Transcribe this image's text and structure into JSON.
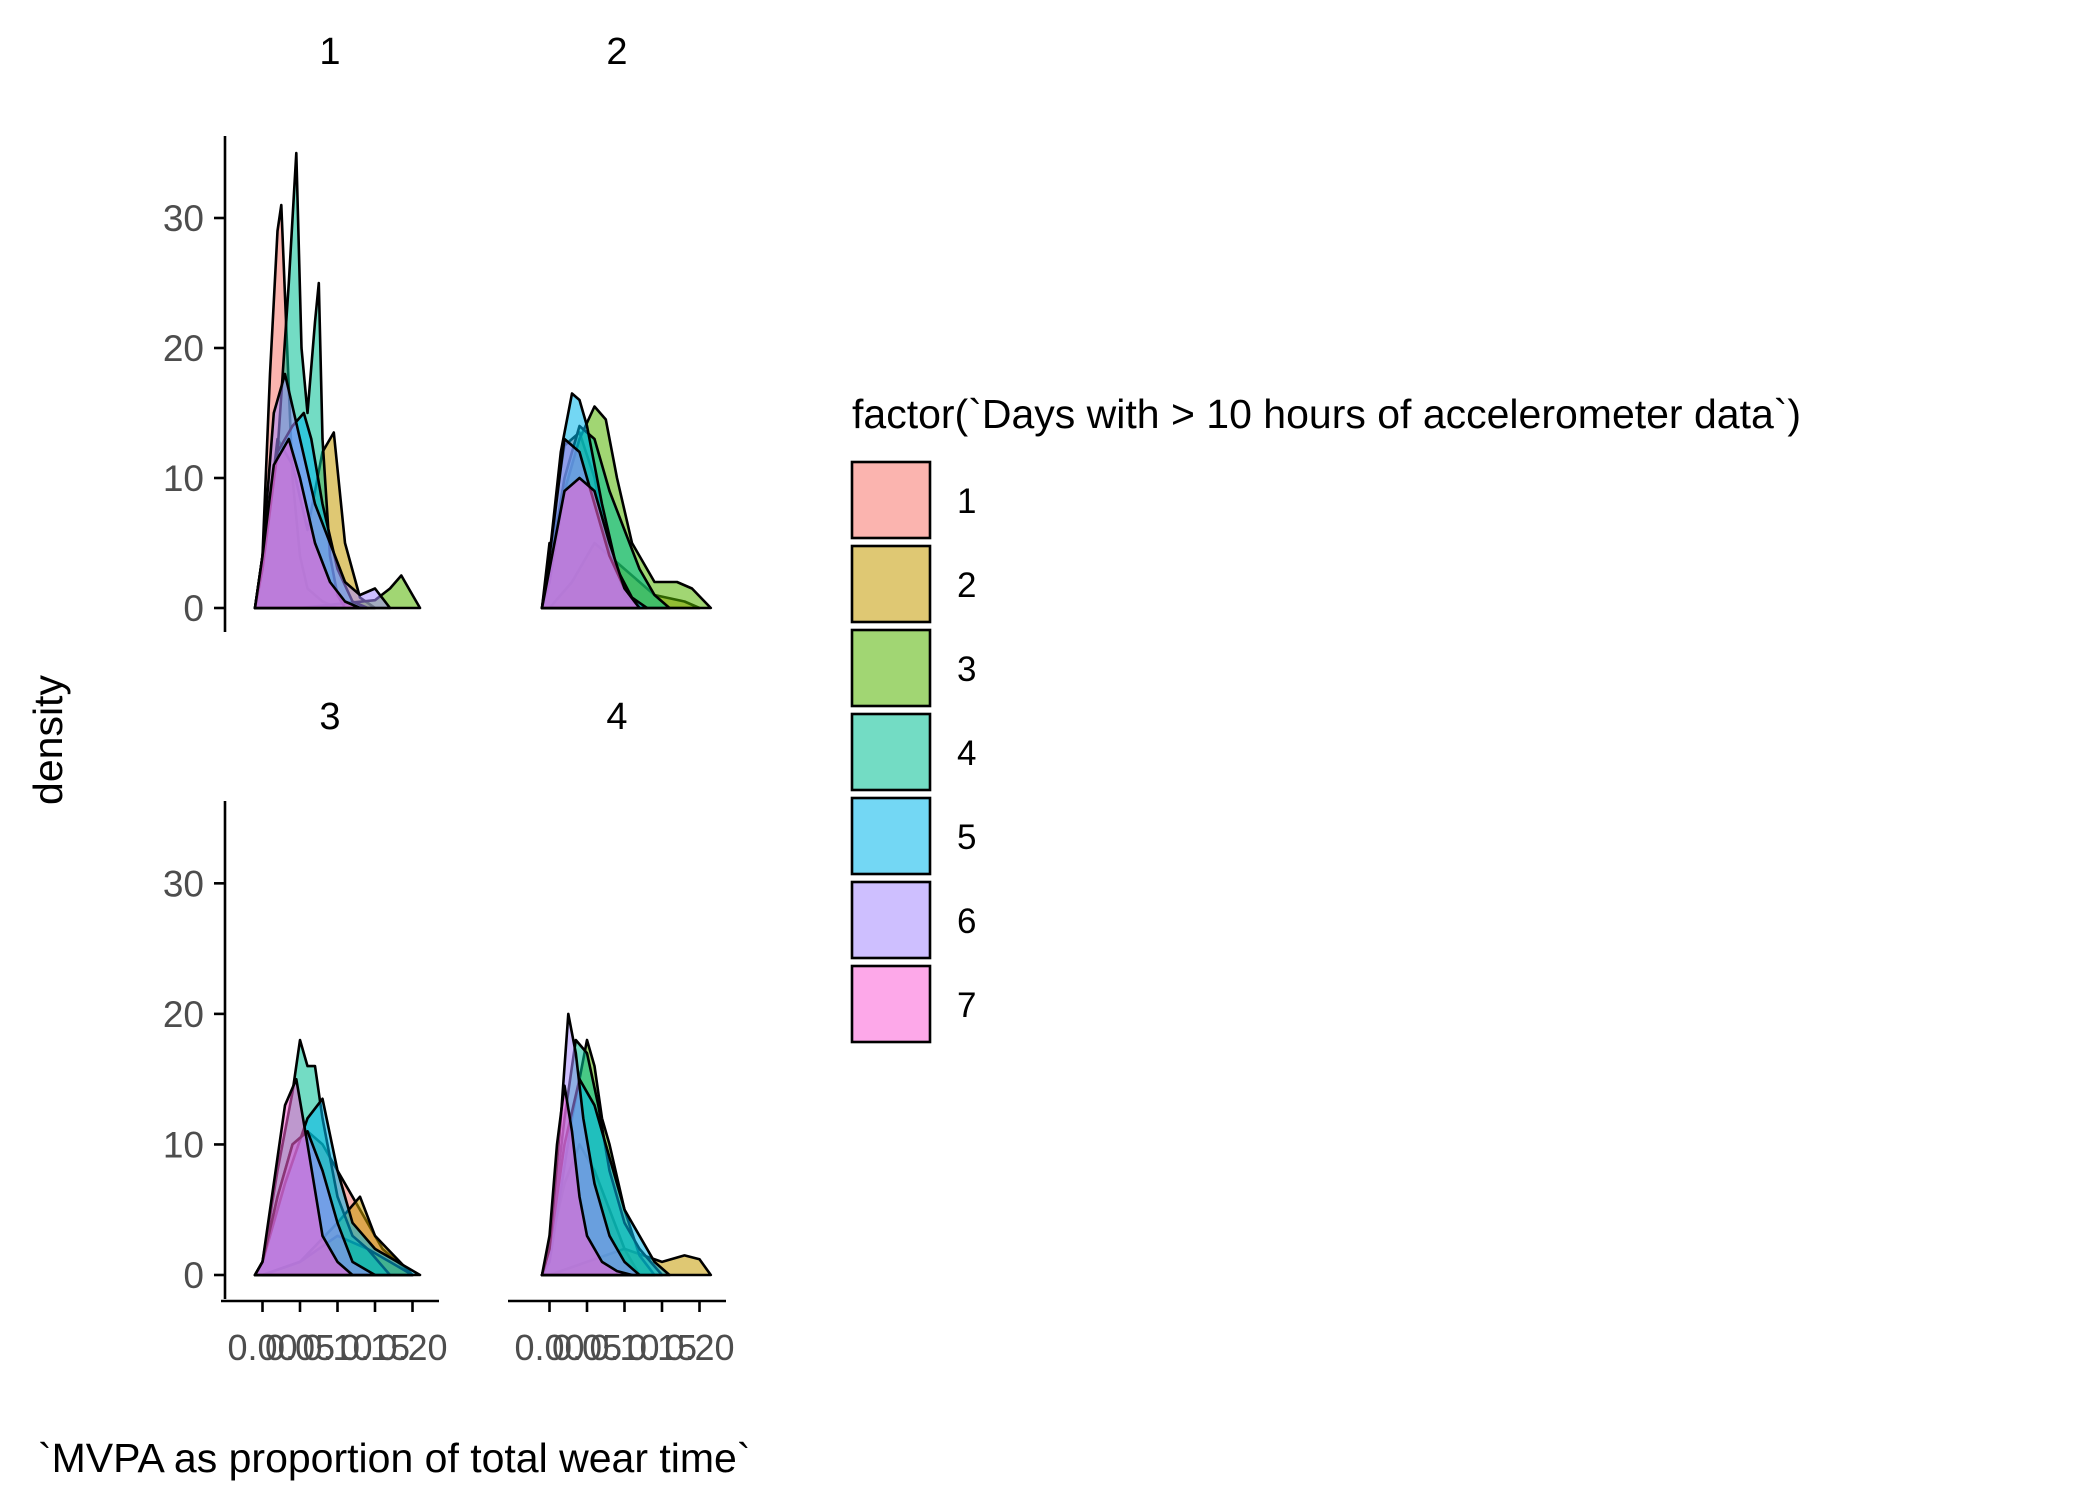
{
  "chart_data": {
    "type": "area",
    "xlabel": "`MVPA as proportion of total wear time`",
    "ylabel": "density",
    "ylim": [
      0,
      36
    ],
    "xlim": [
      -0.05,
      0.23
    ],
    "yticks": [
      0,
      10,
      20,
      30
    ],
    "ytick_labels": [
      "0",
      "10",
      "20",
      "30"
    ],
    "xticks": [
      0.0,
      0.05,
      0.1,
      0.15,
      0.2
    ],
    "xtick_labels": [
      "0.00",
      "0.05",
      "0.10",
      "0.15",
      "0.20"
    ],
    "legend": {
      "title": "factor(`Days with > 10 hours of accelerometer data`)",
      "placement": "right",
      "entries": [
        "1",
        "2",
        "3",
        "4",
        "5",
        "6",
        "7"
      ]
    },
    "series_colors": [
      "#F8766D",
      "#C49A00",
      "#53B400",
      "#00C094",
      "#00B6EB",
      "#A58AFF",
      "#FB61D7"
    ],
    "facets": [
      {
        "label": "1",
        "series": [
          {
            "name": "1",
            "x": [
              -0.01,
              0.0,
              0.01,
              0.02,
              0.025,
              0.03,
              0.04,
              0.05,
              0.06,
              0.08,
              0.1
            ],
            "y": [
              0,
              4,
              18,
              29,
              31,
              24,
              10,
              4,
              1.5,
              0.5,
              0
            ]
          },
          {
            "name": "2",
            "x": [
              -0.01,
              0.0,
              0.02,
              0.04,
              0.06,
              0.08,
              0.095,
              0.11,
              0.13,
              0.15
            ],
            "y": [
              0,
              3,
              13,
              11,
              6,
              12,
              13.5,
              5,
              0.8,
              0
            ]
          },
          {
            "name": "3",
            "x": [
              0.05,
              0.1,
              0.15,
              0.17,
              0.185,
              0.2,
              0.21
            ],
            "y": [
              0,
              0.3,
              0.6,
              1.5,
              2.5,
              1,
              0
            ]
          },
          {
            "name": "4",
            "x": [
              -0.01,
              0.0,
              0.02,
              0.035,
              0.045,
              0.052,
              0.06,
              0.07,
              0.075,
              0.08,
              0.09,
              0.1,
              0.11
            ],
            "y": [
              0,
              4,
              12,
              25,
              35,
              20,
              15,
              22,
              25,
              13,
              4,
              1,
              0
            ]
          },
          {
            "name": "5",
            "x": [
              -0.01,
              0.0,
              0.02,
              0.04,
              0.055,
              0.065,
              0.08,
              0.1,
              0.12,
              0.14
            ],
            "y": [
              0,
              3,
              12,
              14,
              15,
              13,
              8,
              3,
              0.5,
              0
            ]
          },
          {
            "name": "6",
            "x": [
              -0.01,
              0.0,
              0.015,
              0.03,
              0.05,
              0.07,
              0.09,
              0.11,
              0.13,
              0.15,
              0.17
            ],
            "y": [
              0,
              4,
              15,
              18,
              13,
              8,
              5,
              2,
              1,
              1.5,
              0
            ]
          },
          {
            "name": "7",
            "x": [
              -0.01,
              0.0,
              0.015,
              0.035,
              0.05,
              0.07,
              0.09,
              0.11,
              0.13
            ],
            "y": [
              0,
              4,
              11,
              13,
              10,
              5,
              2,
              0.5,
              0
            ]
          }
        ]
      },
      {
        "label": "2",
        "series": [
          {
            "name": "1",
            "x": [
              -0.01,
              0.0,
              0.005,
              0.01,
              0.02,
              0.04,
              0.06,
              0.08,
              0.1,
              0.12
            ],
            "y": [
              0,
              5,
              5,
              9,
              12.5,
              13.5,
              10,
              4,
              1,
              0
            ]
          },
          {
            "name": "2",
            "x": [
              0.0,
              0.03,
              0.06,
              0.1,
              0.14,
              0.18,
              0.2
            ],
            "y": [
              0,
              2,
              5,
              3,
              1,
              0.5,
              0
            ]
          },
          {
            "name": "3",
            "x": [
              -0.01,
              0.0,
              0.02,
              0.04,
              0.06,
              0.075,
              0.09,
              0.11,
              0.14,
              0.17,
              0.19,
              0.215
            ],
            "y": [
              0,
              2,
              9,
              13,
              15.5,
              14.5,
              10,
              5,
              2,
              2,
              1.5,
              0
            ]
          },
          {
            "name": "4",
            "x": [
              -0.01,
              0.0,
              0.02,
              0.04,
              0.06,
              0.08,
              0.1,
              0.12,
              0.14,
              0.16
            ],
            "y": [
              0,
              3,
              10,
              14,
              13,
              9,
              6,
              3,
              1,
              0
            ]
          },
          {
            "name": "5",
            "x": [
              -0.01,
              0.0,
              0.015,
              0.03,
              0.04,
              0.05,
              0.07,
              0.09,
              0.11,
              0.13
            ],
            "y": [
              0,
              4,
              12,
              16.5,
              16,
              14,
              8,
              3,
              0.8,
              0
            ]
          },
          {
            "name": "6",
            "x": [
              -0.01,
              0.0,
              0.02,
              0.04,
              0.06,
              0.08,
              0.1,
              0.12
            ],
            "y": [
              0,
              4,
              13,
              12,
              8,
              4,
              1.5,
              0
            ]
          },
          {
            "name": "7",
            "x": [
              -0.01,
              0.0,
              0.02,
              0.04,
              0.06,
              0.08,
              0.1,
              0.12
            ],
            "y": [
              0,
              3,
              9,
              10,
              9,
              5,
              1.5,
              0
            ]
          }
        ]
      },
      {
        "label": "3",
        "series": [
          {
            "name": "1",
            "x": [
              -0.01,
              0.0,
              0.02,
              0.04,
              0.06,
              0.08,
              0.1,
              0.12,
              0.14,
              0.16,
              0.2
            ],
            "y": [
              0,
              1,
              6,
              10,
              11,
              10,
              8,
              6,
              4,
              2,
              0
            ]
          },
          {
            "name": "2",
            "x": [
              0.0,
              0.05,
              0.1,
              0.13,
              0.15,
              0.2
            ],
            "y": [
              0,
              1,
              4,
              6,
              3,
              0
            ]
          },
          {
            "name": "3",
            "x": [
              0.0,
              0.05,
              0.1,
              0.14,
              0.17,
              0.2
            ],
            "y": [
              0,
              1,
              3,
              2,
              1,
              0
            ]
          },
          {
            "name": "4",
            "x": [
              -0.01,
              0.0,
              0.02,
              0.04,
              0.05,
              0.06,
              0.07,
              0.08,
              0.1,
              0.12,
              0.14,
              0.17
            ],
            "y": [
              0,
              1,
              8,
              14,
              18,
              16,
              16,
              12,
              6,
              3,
              2,
              0
            ]
          },
          {
            "name": "5",
            "x": [
              -0.01,
              0.0,
              0.03,
              0.06,
              0.08,
              0.1,
              0.12,
              0.15,
              0.18,
              0.21
            ],
            "y": [
              0,
              1,
              7,
              12,
              13.5,
              8,
              4,
              2,
              1,
              0
            ]
          },
          {
            "name": "6",
            "x": [
              -0.01,
              0.0,
              0.02,
              0.04,
              0.06,
              0.08,
              0.1,
              0.12,
              0.15
            ],
            "y": [
              0,
              1,
              6,
              10,
              11,
              8,
              4,
              1,
              0
            ]
          },
          {
            "name": "7",
            "x": [
              -0.01,
              0.0,
              0.015,
              0.03,
              0.045,
              0.06,
              0.08,
              0.1,
              0.12
            ],
            "y": [
              0,
              1,
              7,
              13,
              15,
              10,
              3,
              1,
              0
            ]
          }
        ]
      },
      {
        "label": "4",
        "series": [
          {
            "name": "1",
            "x": [
              -0.01,
              0.0,
              0.02,
              0.04,
              0.06,
              0.08,
              0.1,
              0.12
            ],
            "y": [
              0,
              2,
              7,
              10,
              8,
              5,
              2,
              0
            ]
          },
          {
            "name": "2",
            "x": [
              0.0,
              0.05,
              0.1,
              0.15,
              0.18,
              0.2,
              0.215
            ],
            "y": [
              0,
              1,
              2,
              1,
              1.5,
              1.2,
              0
            ]
          },
          {
            "name": "3",
            "x": [
              -0.01,
              0.0,
              0.03,
              0.05,
              0.06,
              0.07,
              0.08,
              0.1,
              0.12,
              0.14
            ],
            "y": [
              0,
              1,
              12,
              18,
              16,
              12,
              10,
              5,
              1.5,
              0
            ]
          },
          {
            "name": "4",
            "x": [
              -0.01,
              0.0,
              0.02,
              0.035,
              0.05,
              0.065,
              0.08,
              0.1,
              0.12,
              0.15
            ],
            "y": [
              0,
              2,
              12,
              18,
              17,
              13,
              8,
              4,
              2,
              0
            ]
          },
          {
            "name": "5",
            "x": [
              -0.01,
              0.0,
              0.02,
              0.04,
              0.06,
              0.08,
              0.1,
              0.12,
              0.14,
              0.16
            ],
            "y": [
              0,
              2,
              10,
              15,
              13,
              9,
              5,
              3,
              1,
              0
            ]
          },
          {
            "name": "6",
            "x": [
              -0.01,
              0.0,
              0.015,
              0.025,
              0.035,
              0.045,
              0.06,
              0.08,
              0.1,
              0.12
            ],
            "y": [
              0,
              2,
              12,
              20,
              17,
              12,
              7,
              3,
              1,
              0
            ]
          },
          {
            "name": "7",
            "x": [
              -0.01,
              0.0,
              0.01,
              0.02,
              0.03,
              0.04,
              0.05,
              0.07,
              0.09,
              0.11
            ],
            "y": [
              0,
              3,
              10,
              14.5,
              11,
              6,
              3,
              1,
              0.3,
              0
            ]
          }
        ]
      }
    ]
  }
}
